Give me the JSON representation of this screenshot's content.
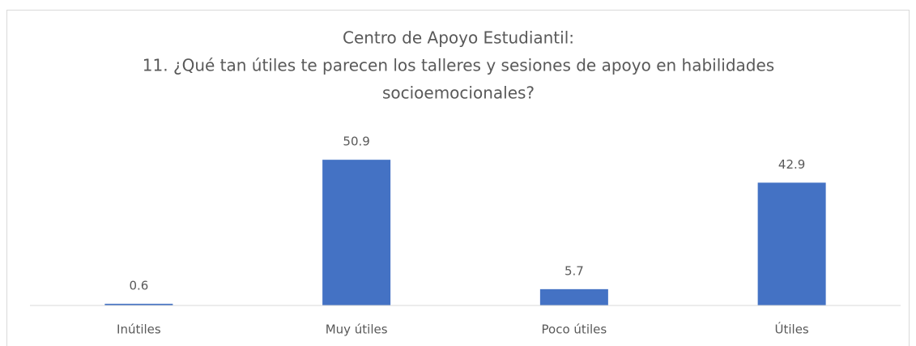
{
  "chart_data": {
    "type": "bar",
    "title": [
      "Centro de Apoyo Estudiantil:",
      "11. ¿Qué tan útiles te parecen los talleres y sesiones de apoyo en habilidades",
      "socioemocionales?"
    ],
    "categories": [
      "Inútiles",
      "Muy útiles",
      "Poco útiles",
      "Útiles"
    ],
    "values": [
      0.6,
      50.9,
      5.7,
      42.9
    ],
    "color": "#4472c4",
    "ylim": [
      0,
      60
    ]
  }
}
